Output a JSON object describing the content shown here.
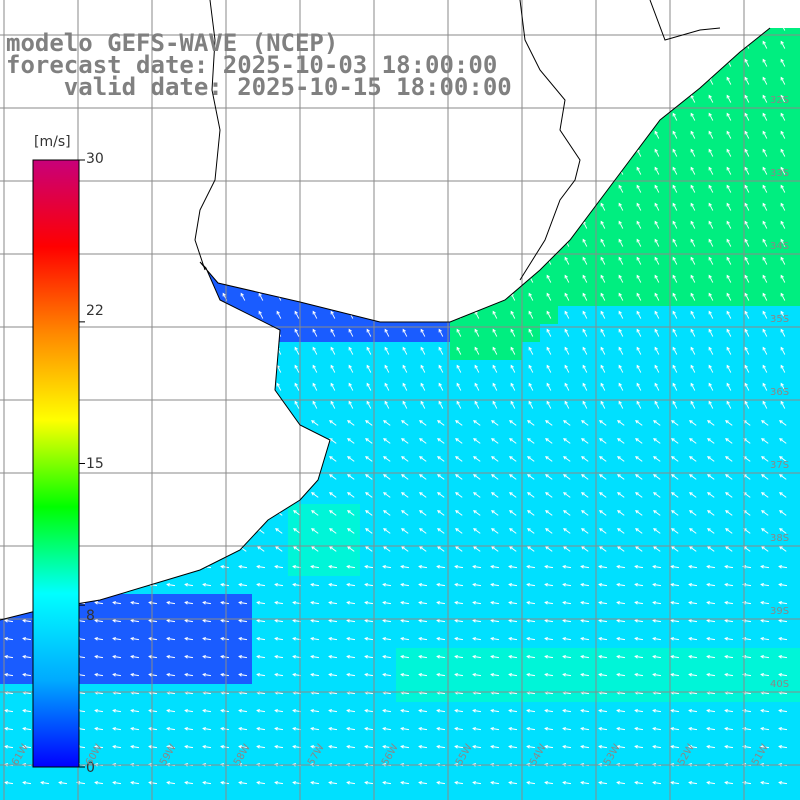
{
  "title": {
    "line1": "modelo GEFS-WAVE (NCEP)",
    "line2": "forecast date: 2025-10-03 18:00:00",
    "line3": "    valid date: 2025-10-15 18:00:00"
  },
  "colorbar": {
    "unit": "[m/s]",
    "ticks": [
      "30",
      "22",
      "15",
      "8",
      "0"
    ],
    "tick_values": [
      30,
      22,
      15,
      8,
      0
    ],
    "colors": [
      "#0000ff",
      "#00aaff",
      "#00ffff",
      "#00ff00",
      "#ffff00",
      "#ff8800",
      "#ff0000",
      "#c8007a"
    ]
  },
  "map": {
    "lat_labels": [
      "32S",
      "33S",
      "34S",
      "35S",
      "36S",
      "37S",
      "38S",
      "39S",
      "40S"
    ],
    "lon_labels": [
      "61W",
      "60W",
      "59W",
      "58W",
      "57W",
      "56W",
      "55W",
      "54W",
      "53W",
      "52W",
      "51W"
    ],
    "ocean_colors": {
      "deep_blue": "#1a5cff",
      "cyan": "#00e0ff",
      "aqua": "#00f5d8",
      "green": "#00ee80"
    },
    "arrow_color": "#ffffff"
  }
}
